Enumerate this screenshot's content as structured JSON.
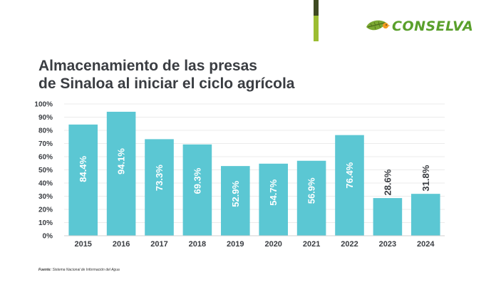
{
  "header": {
    "logo_text": "CONSELVA",
    "logo_icon": "leaf-bird-icon",
    "colors": {
      "accent_dark": "#3f4a22",
      "accent_green": "#9cbd32",
      "logo": "#5aa02c"
    }
  },
  "chart_data": {
    "type": "bar",
    "title": "Almacenamiento de las presas de Sinaloa al iniciar el ciclo agrícola",
    "title_lines": [
      "Almacenamiento de las presas",
      "de Sinaloa al iniciar el ciclo agrícola"
    ],
    "categories": [
      "2015",
      "2016",
      "2017",
      "2018",
      "2019",
      "2020",
      "2021",
      "2022",
      "2023",
      "2024"
    ],
    "values": [
      84.4,
      94.1,
      73.3,
      69.3,
      52.9,
      54.7,
      56.9,
      76.4,
      28.6,
      31.8
    ],
    "data_labels": [
      "84.4%",
      "94.1%",
      "73.3%",
      "69.3%",
      "52.9%",
      "54.7%",
      "56.9%",
      "76.4%",
      "28.6%",
      "31.8%"
    ],
    "yticks": [
      "0%",
      "10%",
      "20%",
      "30%",
      "40%",
      "50%",
      "60%",
      "70%",
      "80%",
      "90%",
      "100%"
    ],
    "ylim": [
      0,
      100
    ],
    "xlabel": "",
    "ylabel": "",
    "grid": true,
    "bar_color": "#5bc7d3"
  },
  "source": {
    "label": "Fuente:",
    "text": "Sistema Nacional de Información del Agua"
  }
}
